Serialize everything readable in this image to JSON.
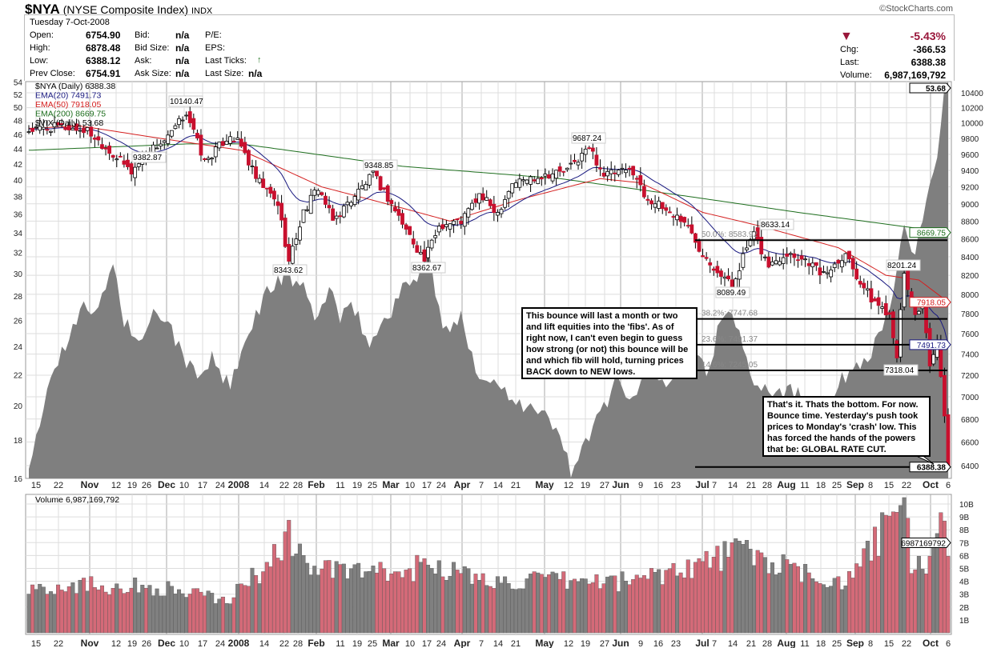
{
  "header": {
    "symbol": "$NYA",
    "name": "(NYSE Composite Index)",
    "exchange": "INDX",
    "watermark": "©StockCharts.com",
    "date": "Tuesday  7-Oct-2008",
    "fields": [
      {
        "label": "Open:",
        "value": "6754.90"
      },
      {
        "label": "High:",
        "value": "6878.48"
      },
      {
        "label": "Low:",
        "value": "6388.12"
      },
      {
        "label": "Prev Close:",
        "value": "6754.91"
      },
      {
        "label": "Bid:",
        "value": "n/a"
      },
      {
        "label": "Bid Size:",
        "value": "n/a"
      },
      {
        "label": "Ask:",
        "value": "n/a"
      },
      {
        "label": "Ask Size:",
        "value": "n/a"
      },
      {
        "label": "P/E:",
        "value": ""
      },
      {
        "label": "EPS:",
        "value": ""
      },
      {
        "label": "Last Ticks:",
        "value": ""
      },
      {
        "label": "Last Size:",
        "value": "n/a"
      }
    ],
    "change_pct": "-5.43%",
    "chg_label": "Chg:",
    "chg": "-366.53",
    "last_label": "Last:",
    "last": "6388.38",
    "volume_label": "Volume:",
    "volume": "6,987,169,792",
    "down_color": "#99163a",
    "up_tick_color": "#2a7a2a"
  },
  "chart_data": [
    {
      "type": "candlestick",
      "title": "$NYA (Daily) 6388.38",
      "scale": "log",
      "ylim": [
        6388,
        10400
      ],
      "yticks": [
        6400,
        6600,
        6800,
        7000,
        7200,
        7400,
        7600,
        7800,
        8000,
        8200,
        8400,
        8600,
        8800,
        9000,
        9200,
        9400,
        9600,
        9800,
        10000,
        10200,
        10400
      ],
      "close_keyframes": [
        [
          0,
          9900
        ],
        [
          8,
          9950
        ],
        [
          16,
          9900
        ],
        [
          23,
          9600
        ],
        [
          28,
          9383
        ],
        [
          33,
          9650
        ],
        [
          38,
          9800
        ],
        [
          43,
          10140
        ],
        [
          48,
          9500
        ],
        [
          55,
          9850
        ],
        [
          58,
          9700
        ],
        [
          62,
          9300
        ],
        [
          68,
          9000
        ],
        [
          71,
          8344
        ],
        [
          75,
          8900
        ],
        [
          79,
          9200
        ],
        [
          83,
          8800
        ],
        [
          88,
          9050
        ],
        [
          94,
          9349
        ],
        [
          99,
          9000
        ],
        [
          103,
          8700
        ],
        [
          108,
          8363
        ],
        [
          112,
          8750
        ],
        [
          118,
          8800
        ],
        [
          123,
          9100
        ],
        [
          128,
          8900
        ],
        [
          132,
          9250
        ],
        [
          141,
          9350
        ],
        [
          147,
          9400
        ],
        [
          153,
          9687
        ],
        [
          157,
          9350
        ],
        [
          165,
          9400
        ],
        [
          168,
          9100
        ],
        [
          173,
          8950
        ],
        [
          179,
          8800
        ],
        [
          183,
          8500
        ],
        [
          187,
          8300
        ],
        [
          192,
          8089
        ],
        [
          196,
          8500
        ],
        [
          198,
          8633
        ],
        [
          202,
          8300
        ],
        [
          207,
          8450
        ],
        [
          213,
          8350
        ],
        [
          217,
          8200
        ],
        [
          223,
          8450
        ],
        [
          226,
          8200
        ],
        [
          230,
          7950
        ],
        [
          235,
          7800
        ],
        [
          237,
          7400
        ],
        [
          239,
          8201
        ],
        [
          242,
          7800
        ],
        [
          244,
          7900
        ],
        [
          246,
          7250
        ],
        [
          248,
          7500
        ],
        [
          250,
          6800
        ],
        [
          251,
          6388
        ]
      ],
      "series": [
        {
          "name": "EMA(20)",
          "last": "7491.73",
          "color": "#1a1a80"
        },
        {
          "name": "EMA(50)",
          "last": "7918.05",
          "color": "#d42020",
          "keyframes": [
            [
              0,
              9930
            ],
            [
              14,
              9960
            ],
            [
              36,
              9800
            ],
            [
              58,
              9650
            ],
            [
              80,
              9200
            ],
            [
              102,
              8950
            ],
            [
              115,
              8800
            ],
            [
              134,
              9050
            ],
            [
              156,
              9300
            ],
            [
              167,
              9250
            ],
            [
              184,
              8900
            ],
            [
              199,
              8750
            ],
            [
              221,
              8500
            ],
            [
              234,
              8200
            ],
            [
              243,
              8150
            ],
            [
              251,
              7918
            ]
          ]
        },
        {
          "name": "EMA(200)",
          "last": "8669.75",
          "color": "#1e6e1e",
          "keyframes": [
            [
              0,
              9650
            ],
            [
              43,
              9730
            ],
            [
              58,
              9730
            ],
            [
              102,
              9450
            ],
            [
              145,
              9300
            ],
            [
              178,
              9100
            ],
            [
              210,
              8900
            ],
            [
              251,
              8670
            ]
          ]
        }
      ],
      "annotations": [
        "10140.47",
        "9382.87",
        "9348.85",
        "8343.62",
        "8362.67",
        "9687.24",
        "8633.14",
        "8089.49",
        "8201.24",
        "7318.04"
      ],
      "fib_levels": [
        {
          "label": "50.0%: 8583.92",
          "value": 8583.92
        },
        {
          "label": "38.2%: 7747.68",
          "value": 7747.68
        },
        {
          "label": "23.6%: 7491.37",
          "value": 7491.37
        },
        {
          "label": "14.6%: 7245.05",
          "value": 7245.05
        },
        {
          "label": "",
          "value": 6388.38
        }
      ],
      "notes": [
        "This bounce will last a month or two and lift equities into the 'fibs'. As of right now, I can't even begin to guess how strong (or not) this bounce will be and which fib will hold, turning prices BACK down to NEW lows.",
        "That's it. Thats the bottom. For now. Bounce time. Yesterday's push took prices to Monday's 'crash' low. This has forced the hands of the powers that be: GLOBAL RATE CUT."
      ],
      "last_tags": [
        "53.68",
        "8669.75",
        "7918.05",
        "7491.73",
        "6388.38"
      ]
    },
    {
      "type": "area",
      "name": "$VIX (Daily) 53.68",
      "scale": "log",
      "ylim": [
        16,
        54
      ],
      "yticks": [
        16,
        18,
        20,
        22,
        24,
        26,
        28,
        30,
        32,
        34,
        36,
        38,
        40,
        42,
        44,
        46,
        48,
        50,
        52,
        54
      ],
      "keyframes": [
        [
          0,
          16
        ],
        [
          3,
          19
        ],
        [
          6,
          22
        ],
        [
          10,
          24
        ],
        [
          15,
          28
        ],
        [
          18,
          26
        ],
        [
          23,
          31
        ],
        [
          26,
          26
        ],
        [
          31,
          24
        ],
        [
          35,
          27
        ],
        [
          39,
          25
        ],
        [
          45,
          22
        ],
        [
          50,
          23
        ],
        [
          55,
          21
        ],
        [
          59,
          24
        ],
        [
          64,
          28
        ],
        [
          70,
          30
        ],
        [
          74,
          29
        ],
        [
          79,
          26
        ],
        [
          82,
          29
        ],
        [
          85,
          26
        ],
        [
          89,
          27
        ],
        [
          93,
          24
        ],
        [
          97,
          26
        ],
        [
          101,
          28
        ],
        [
          106,
          30
        ],
        [
          109,
          32
        ],
        [
          113,
          25
        ],
        [
          118,
          26
        ],
        [
          123,
          22
        ],
        [
          130,
          21
        ],
        [
          136,
          20
        ],
        [
          143,
          19
        ],
        [
          148,
          16.5
        ],
        [
          153,
          18
        ],
        [
          157,
          20
        ],
        [
          161,
          22
        ],
        [
          165,
          20
        ],
        [
          169,
          23
        ],
        [
          174,
          21
        ],
        [
          180,
          25
        ],
        [
          185,
          22
        ],
        [
          189,
          26
        ],
        [
          193,
          26
        ],
        [
          197,
          22
        ],
        [
          203,
          21
        ],
        [
          208,
          21
        ],
        [
          214,
          20
        ],
        [
          220,
          21
        ],
        [
          227,
          23
        ],
        [
          231,
          24
        ],
        [
          235,
          27
        ],
        [
          239,
          34
        ],
        [
          242,
          31
        ],
        [
          244,
          36
        ],
        [
          246,
          39
        ],
        [
          248,
          44
        ],
        [
          250,
          52
        ],
        [
          251,
          54
        ]
      ]
    },
    {
      "type": "bar",
      "name": "Volume 6,987,169,792",
      "unit": "B",
      "yticks": [
        "1B",
        "2B",
        "3B",
        "4B",
        "5B",
        "6B",
        "7B",
        "8B",
        "9B",
        "10B"
      ],
      "last_tag": "6987169792",
      "keyframes": [
        [
          0,
          3.5
        ],
        [
          14,
          3.8
        ],
        [
          36,
          3.5
        ],
        [
          54,
          2.5
        ],
        [
          64,
          5
        ],
        [
          71,
          7.5
        ],
        [
          77,
          5
        ],
        [
          101,
          4.5
        ],
        [
          110,
          5.5
        ],
        [
          123,
          4
        ],
        [
          145,
          4
        ],
        [
          163,
          4
        ],
        [
          185,
          5.5
        ],
        [
          194,
          6.5
        ],
        [
          211,
          4.5
        ],
        [
          224,
          4
        ],
        [
          230,
          6.5
        ],
        [
          237,
          9.5
        ],
        [
          239,
          10.3
        ],
        [
          241,
          5.2
        ],
        [
          246,
          5.5
        ],
        [
          249,
          7.8
        ],
        [
          251,
          7
        ]
      ]
    }
  ],
  "x_axis": {
    "labels": [
      [
        "15",
        0
      ],
      [
        "22",
        0
      ],
      [
        "Nov",
        1
      ],
      [
        "12",
        0
      ],
      [
        "19",
        0
      ],
      [
        "26",
        0
      ],
      [
        "Dec",
        1
      ],
      [
        "10",
        0
      ],
      [
        "17",
        0
      ],
      [
        "24",
        0
      ],
      [
        "2008",
        1
      ],
      [
        "14",
        0
      ],
      [
        "22",
        0
      ],
      [
        "28",
        0
      ],
      [
        "Feb",
        1
      ],
      [
        "11",
        0
      ],
      [
        "19",
        0
      ],
      [
        "25",
        0
      ],
      [
        "Mar",
        1
      ],
      [
        "10",
        0
      ],
      [
        "17",
        0
      ],
      [
        "24",
        0
      ],
      [
        "Apr",
        1
      ],
      [
        "7",
        0
      ],
      [
        "14",
        0
      ],
      [
        "21",
        0
      ],
      [
        "May",
        1
      ],
      [
        "12",
        0
      ],
      [
        "19",
        0
      ],
      [
        "27",
        0
      ],
      [
        "Jun",
        1
      ],
      [
        "9",
        0
      ],
      [
        "16",
        0
      ],
      [
        "23",
        0
      ],
      [
        "Jul",
        1
      ],
      [
        "7",
        0
      ],
      [
        "14",
        0
      ],
      [
        "21",
        0
      ],
      [
        "28",
        0
      ],
      [
        "Aug",
        1
      ],
      [
        "11",
        0
      ],
      [
        "18",
        0
      ],
      [
        "25",
        0
      ],
      [
        "Sep",
        1
      ],
      [
        "8",
        0
      ],
      [
        "15",
        0
      ],
      [
        "22",
        0
      ],
      [
        "Oct",
        1
      ],
      [
        "6",
        0
      ]
    ]
  }
}
